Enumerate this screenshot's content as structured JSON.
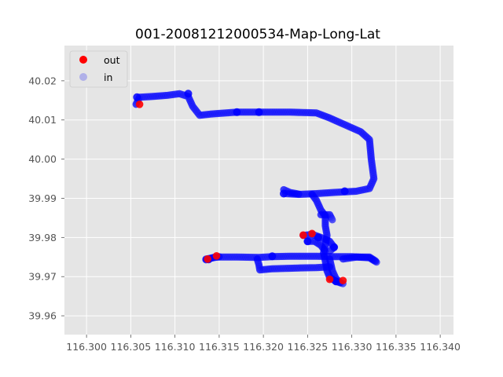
{
  "chart_data": {
    "type": "scatter",
    "title": "001-20081212000534-Map-Long-Lat",
    "xlabel": "",
    "ylabel": "",
    "xlim": [
      116.2975,
      116.3415
    ],
    "ylim": [
      39.9552,
      40.029
    ],
    "x_ticks": [
      "116.300",
      "116.305",
      "116.310",
      "116.315",
      "116.320",
      "116.325",
      "116.330",
      "116.335",
      "116.340"
    ],
    "y_ticks": [
      "39.96",
      "39.97",
      "39.98",
      "39.99",
      "40.00",
      "40.01",
      "40.02"
    ],
    "grid": true,
    "legend_position": "top-left",
    "background": "#e5e5e5",
    "series": [
      {
        "name": "in",
        "color": "#0000ff",
        "legend_color": "#b0b0e8",
        "opacity": 0.28,
        "path_segments": [
          [
            [
              116.3056,
              40.014
            ],
            [
              116.306,
              40.0158
            ],
            [
              116.3075,
              40.016
            ],
            [
              116.3092,
              40.0163
            ],
            [
              116.3105,
              40.0167
            ],
            [
              116.3115,
              40.016
            ],
            [
              116.312,
              40.0135
            ],
            [
              116.3128,
              40.0112
            ],
            [
              116.314,
              40.0115
            ],
            [
              116.317,
              40.012
            ],
            [
              116.32,
              40.012
            ],
            [
              116.323,
              40.012
            ],
            [
              116.326,
              40.0118
            ],
            [
              116.3275,
              40.0105
            ],
            [
              116.329,
              40.009
            ],
            [
              116.331,
              40.007
            ],
            [
              116.332,
              40.005
            ],
            [
              116.3322,
              40.0
            ],
            [
              116.3325,
              39.995
            ],
            [
              116.332,
              39.9925
            ],
            [
              116.3305,
              39.9918
            ],
            [
              116.328,
              39.9915
            ],
            [
              116.326,
              39.9912
            ],
            [
              116.324,
              39.991
            ],
            [
              116.3225,
              39.9912
            ]
          ],
          [
            [
              116.3223,
              39.9922
            ],
            [
              116.323,
              39.9915
            ],
            [
              116.324,
              39.9911
            ]
          ],
          [
            [
              116.3255,
              39.991
            ],
            [
              116.326,
              39.9895
            ],
            [
              116.3265,
              39.987
            ],
            [
              116.327,
              39.9855
            ],
            [
              116.327,
              39.983
            ],
            [
              116.3272,
              39.9805
            ],
            [
              116.327,
              39.978
            ],
            [
              116.3268,
              39.976
            ],
            [
              116.327,
              39.974
            ],
            [
              116.3272,
              39.9715
            ],
            [
              116.3275,
              39.9698
            ],
            [
              116.3282,
              39.9688
            ],
            [
              116.329,
              39.9682
            ]
          ],
          [
            [
              116.3265,
              39.9858
            ],
            [
              116.3275,
              39.9858
            ],
            [
              116.3278,
              39.9845
            ]
          ],
          [
            [
              116.3245,
              39.9805
            ],
            [
              116.3255,
              39.9808
            ],
            [
              116.3265,
              39.98
            ],
            [
              116.3275,
              39.979
            ],
            [
              116.328,
              39.9775
            ],
            [
              116.3275,
              39.9765
            ]
          ],
          [
            [
              116.325,
              39.979
            ],
            [
              116.3258,
              39.979
            ],
            [
              116.3265,
              39.978
            ],
            [
              116.327,
              39.9765
            ]
          ],
          [
            [
              116.3135,
              39.9743
            ],
            [
              116.3145,
              39.975
            ],
            [
              116.317,
              39.975
            ],
            [
              116.3195,
              39.9749
            ],
            [
              116.321,
              39.9751
            ],
            [
              116.323,
              39.9752
            ],
            [
              116.326,
              39.9752
            ],
            [
              116.328,
              39.9751
            ],
            [
              116.33,
              39.9751
            ],
            [
              116.332,
              39.9748
            ],
            [
              116.3328,
              39.9737
            ]
          ],
          [
            [
              116.3193,
              39.9745
            ],
            [
              116.3195,
              39.973
            ],
            [
              116.3196,
              39.9717
            ],
            [
              116.321,
              39.972
            ],
            [
              116.324,
              39.9722
            ],
            [
              116.326,
              39.9723
            ],
            [
              116.3275,
              39.9725
            ]
          ],
          [
            [
              116.3135,
              39.9745
            ],
            [
              116.315,
              39.9751
            ]
          ],
          [
            [
              116.3275,
              39.9745
            ],
            [
              116.3278,
              39.9715
            ],
            [
              116.3282,
              39.9695
            ],
            [
              116.3287,
              39.9685
            ]
          ],
          [
            [
              116.329,
              39.9745
            ],
            [
              116.3305,
              39.975
            ],
            [
              116.332,
              39.975
            ],
            [
              116.3327,
              39.974
            ]
          ]
        ],
        "markers": [
          [
            116.3057,
            40.0158
          ],
          [
            116.3115,
            40.0167
          ],
          [
            116.317,
            40.012
          ],
          [
            116.3195,
            40.012
          ],
          [
            116.3292,
            39.9918
          ],
          [
            116.3223,
            39.9912
          ],
          [
            116.321,
            39.9752
          ],
          [
            116.325,
            39.979
          ],
          [
            116.328,
            39.9775
          ],
          [
            116.3262,
            39.98
          ],
          [
            116.3138,
            39.9744
          ],
          [
            116.3282,
            39.9688
          ]
        ]
      },
      {
        "name": "out",
        "color": "#ff0000",
        "opacity": 0.9,
        "points": [
          [
            116.306,
            40.014
          ],
          [
            116.3245,
            39.9806
          ],
          [
            116.3255,
            39.981
          ],
          [
            116.3137,
            39.9745
          ],
          [
            116.3147,
            39.9753
          ],
          [
            116.329,
            39.969
          ],
          [
            116.3275,
            39.9693
          ]
        ]
      }
    ]
  }
}
